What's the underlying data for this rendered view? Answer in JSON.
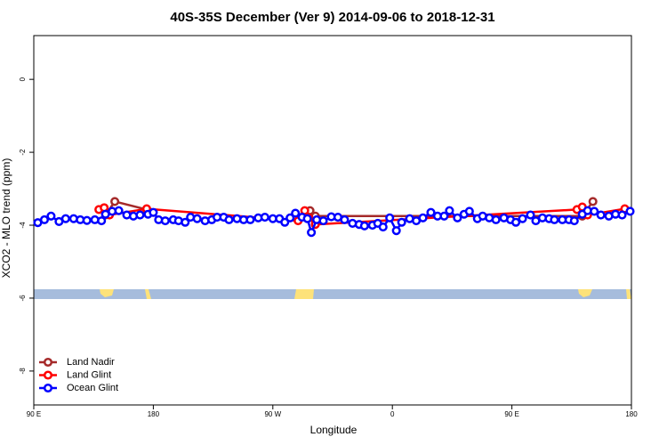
{
  "chart_data": {
    "type": "line",
    "title": "40S-35S December (Ver 9)   2014-09-06 to 2018-12-31",
    "x_label": "Longitude",
    "y_label": "XCO2 - MLO trend (ppm)",
    "xlim": [
      90,
      540
    ],
    "xticks": [
      {
        "value": 90,
        "label": "90 E"
      },
      {
        "value": 180,
        "label": "180"
      },
      {
        "value": 270,
        "label": "90 W"
      },
      {
        "value": 360,
        "label": "0"
      },
      {
        "value": 450,
        "label": "90 E"
      },
      {
        "value": 540,
        "label": "180"
      }
    ],
    "ylim": [
      -8.93,
      1.2
    ],
    "yticks": [
      0,
      -2,
      -4,
      -6,
      -8
    ],
    "legend": "bottom left",
    "series": [
      {
        "name": "Land Nadir",
        "color": "#a52a2a",
        "x": [
          144,
          151,
          175,
          288,
          298,
          302,
          503,
          511
        ],
        "values": [
          -3.72,
          -3.35,
          -3.57,
          null,
          -3.6,
          -3.75,
          -3.75,
          -3.35
        ]
      },
      {
        "name": "Land Glint",
        "color": "#ff0000",
        "x": [
          139,
          143,
          147,
          175,
          289,
          294,
          297,
          302,
          499,
          503,
          507,
          535
        ],
        "values": [
          -3.57,
          -3.52,
          -3.72,
          -3.55,
          -3.88,
          -3.6,
          -3.8,
          -3.98,
          -3.57,
          -3.5,
          -3.72,
          -3.55
        ]
      },
      {
        "name": "Ocean Glint",
        "color": "#0000ff",
        "x": [
          93,
          98,
          103,
          109,
          114,
          120,
          125,
          130,
          136,
          141,
          144,
          149,
          154,
          160,
          165,
          170,
          176,
          180,
          184,
          189,
          195,
          199,
          204,
          208,
          213,
          219,
          224,
          228,
          233,
          237,
          243,
          248,
          253,
          259,
          264,
          270,
          275,
          279,
          283,
          287,
          292,
          296,
          299,
          303,
          308,
          314,
          319,
          324,
          330,
          335,
          339,
          345,
          349,
          353,
          358,
          363,
          367,
          373,
          378,
          383,
          389,
          394,
          399,
          403,
          409,
          414,
          418,
          424,
          428,
          433,
          438,
          444,
          449,
          453,
          458,
          464,
          468,
          473,
          478,
          482,
          488,
          493,
          497,
          503,
          507,
          512,
          517,
          523,
          528,
          533,
          539
        ],
        "values": [
          -3.93,
          -3.85,
          -3.75,
          -3.9,
          -3.82,
          -3.82,
          -3.85,
          -3.87,
          -3.85,
          -3.88,
          -3.7,
          -3.62,
          -3.6,
          -3.72,
          -3.75,
          -3.72,
          -3.7,
          -3.65,
          -3.85,
          -3.88,
          -3.85,
          -3.88,
          -3.92,
          -3.78,
          -3.82,
          -3.88,
          -3.85,
          -3.78,
          -3.78,
          -3.85,
          -3.82,
          -3.85,
          -3.85,
          -3.8,
          -3.78,
          -3.82,
          -3.82,
          -3.92,
          -3.8,
          -3.67,
          -3.78,
          -3.82,
          -4.2,
          -3.85,
          -3.88,
          -3.77,
          -3.78,
          -3.85,
          -3.95,
          -3.98,
          -4.02,
          -4.0,
          -3.95,
          -4.05,
          -3.8,
          -4.15,
          -3.92,
          -3.82,
          -3.88,
          -3.8,
          -3.65,
          -3.75,
          -3.75,
          -3.6,
          -3.8,
          -3.7,
          -3.62,
          -3.82,
          -3.75,
          -3.8,
          -3.85,
          -3.8,
          -3.85,
          -3.92,
          -3.82,
          -3.72,
          -3.88,
          -3.8,
          -3.82,
          -3.85,
          -3.85,
          -3.85,
          -3.88,
          -3.7,
          -3.6,
          -3.62,
          -3.72,
          -3.75,
          -3.7,
          -3.72,
          -3.62
        ]
      }
    ]
  }
}
